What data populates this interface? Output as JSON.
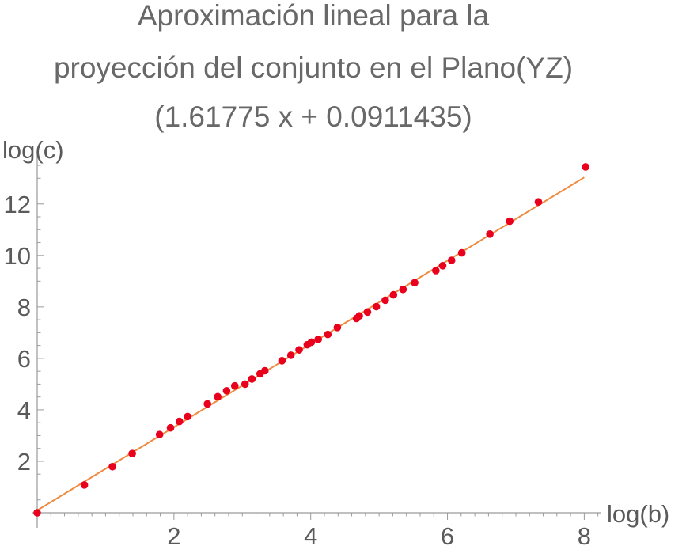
{
  "chart_data": {
    "type": "scatter",
    "title_lines": [
      "Aproximación lineal para la",
      "proyección del conjunto en el Plano(YZ)",
      "(1.61775 x + 0.0911435)"
    ],
    "xlabel": "log(b)",
    "ylabel": "log(c)",
    "xlim": [
      0,
      8.25
    ],
    "ylim": [
      -0.4,
      13.9
    ],
    "xticks": [
      2,
      4,
      6,
      8
    ],
    "yticks": [
      2,
      4,
      6,
      8,
      10,
      12
    ],
    "grid": false,
    "colors": {
      "points": "#e8001c",
      "fit_line": "#f08a3e",
      "axis": "#9a9a9a"
    },
    "fit_line": {
      "slope": 1.61775,
      "intercept": 0.0911435,
      "x_range": [
        0,
        8.0
      ]
    },
    "series": [
      {
        "points": [
          [
            0.0,
            0.0
          ],
          [
            0.69,
            1.08
          ],
          [
            1.1,
            1.79
          ],
          [
            1.39,
            2.3
          ],
          [
            1.79,
            3.04
          ],
          [
            1.95,
            3.3
          ],
          [
            2.08,
            3.55
          ],
          [
            2.2,
            3.74
          ],
          [
            2.49,
            4.23
          ],
          [
            2.64,
            4.51
          ],
          [
            2.77,
            4.74
          ],
          [
            2.89,
            4.93
          ],
          [
            3.04,
            5.0
          ],
          [
            3.14,
            5.2
          ],
          [
            3.26,
            5.4
          ],
          [
            3.33,
            5.52
          ],
          [
            3.58,
            5.91
          ],
          [
            3.71,
            6.12
          ],
          [
            3.83,
            6.33
          ],
          [
            3.95,
            6.53
          ],
          [
            4.01,
            6.63
          ],
          [
            4.11,
            6.74
          ],
          [
            4.25,
            6.93
          ],
          [
            4.39,
            7.2
          ],
          [
            4.67,
            7.55
          ],
          [
            4.71,
            7.65
          ],
          [
            4.83,
            7.8
          ],
          [
            4.96,
            8.01
          ],
          [
            5.09,
            8.26
          ],
          [
            5.21,
            8.47
          ],
          [
            5.35,
            8.68
          ],
          [
            5.52,
            8.94
          ],
          [
            5.83,
            9.41
          ],
          [
            5.93,
            9.6
          ],
          [
            6.06,
            9.81
          ],
          [
            6.21,
            10.1
          ],
          [
            6.62,
            10.83
          ],
          [
            6.91,
            11.33
          ],
          [
            7.33,
            12.08
          ],
          [
            8.02,
            13.44
          ]
        ]
      }
    ]
  }
}
